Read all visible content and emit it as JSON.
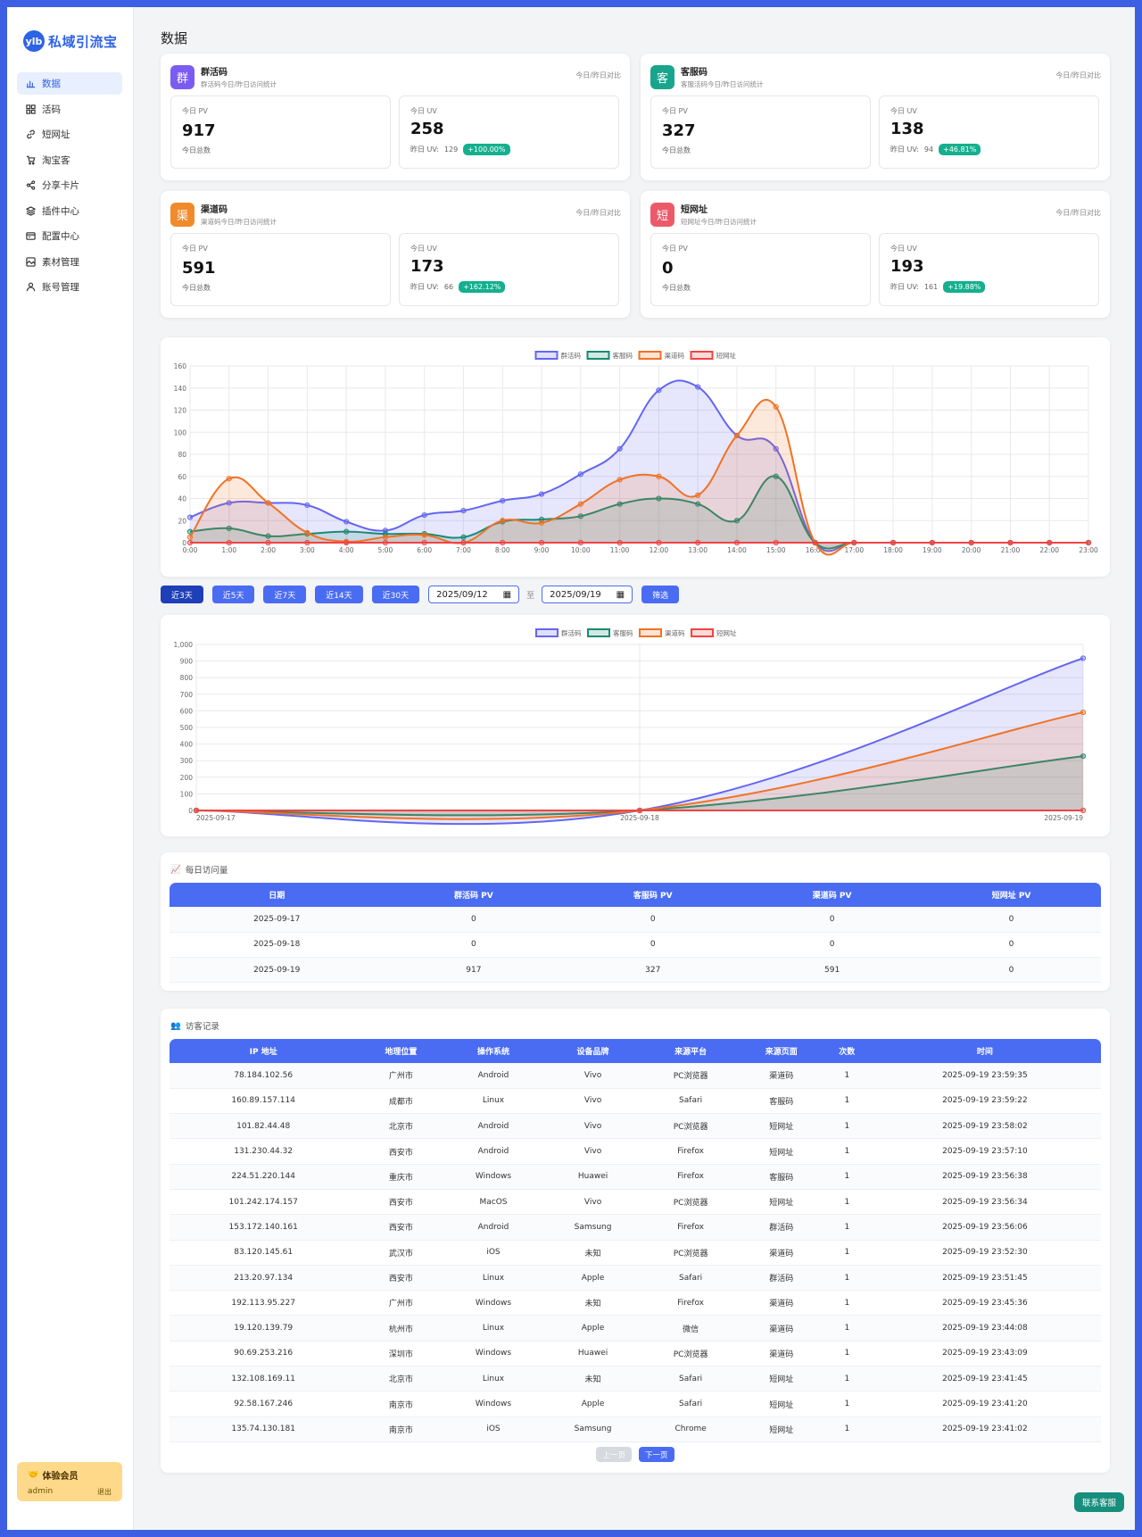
{
  "app": {
    "logo_badge": "ylb",
    "name": "私域引流宝"
  },
  "sidebar": {
    "items": [
      {
        "label": "数据",
        "icon": "chart-icon",
        "active": true
      },
      {
        "label": "活码",
        "icon": "grid-icon"
      },
      {
        "label": "短网址",
        "icon": "link-icon"
      },
      {
        "label": "淘宝客",
        "icon": "cart-icon"
      },
      {
        "label": "分享卡片",
        "icon": "share-icon"
      },
      {
        "label": "插件中心",
        "icon": "layers-icon"
      },
      {
        "label": "配置中心",
        "icon": "config-icon"
      },
      {
        "label": "素材管理",
        "icon": "image-icon"
      },
      {
        "label": "账号管理",
        "icon": "user-icon"
      }
    ],
    "member": {
      "title": "体验会员",
      "user": "admin",
      "logout": "退出"
    }
  },
  "page": {
    "title": "数据"
  },
  "cards": [
    {
      "icon_char": "群",
      "color": "#7b5cf0",
      "title": "群活码",
      "subtitle": "群活码今日/昨日访问统计",
      "compare": "今日/昨日对比",
      "pv_label": "今日 PV",
      "pv": "917",
      "pv_foot": "今日总数",
      "uv_label": "今日 UV",
      "uv": "258",
      "yuv_label": "昨日 UV:",
      "yuv": "129",
      "pct": "+100.00%"
    },
    {
      "icon_char": "客",
      "color": "#19a58b",
      "title": "客服码",
      "subtitle": "客服活码今日/昨日访问统计",
      "compare": "今日/昨日对比",
      "pv_label": "今日 PV",
      "pv": "327",
      "pv_foot": "今日总数",
      "uv_label": "今日 UV",
      "uv": "138",
      "yuv_label": "昨日 UV:",
      "yuv": "94",
      "pct": "+46.81%"
    },
    {
      "icon_char": "渠",
      "color": "#f08a2a",
      "title": "渠道码",
      "subtitle": "渠道码今日/昨日访问统计",
      "compare": "今日/昨日对比",
      "pv_label": "今日 PV",
      "pv": "591",
      "pv_foot": "今日总数",
      "uv_label": "今日 UV",
      "uv": "173",
      "yuv_label": "昨日 UV:",
      "yuv": "66",
      "pct": "+162.12%"
    },
    {
      "icon_char": "短",
      "color": "#ec5a6a",
      "title": "短网址",
      "subtitle": "短网址今日/昨日访问统计",
      "compare": "今日/昨日对比",
      "pv_label": "今日 PV",
      "pv": "0",
      "pv_foot": "今日总数",
      "uv_label": "今日 UV",
      "uv": "193",
      "yuv_label": "昨日 UV:",
      "yuv": "161",
      "pct": "+19.88%"
    }
  ],
  "filters": {
    "buttons": [
      {
        "label": "近3天",
        "active": true
      },
      {
        "label": "近5天"
      },
      {
        "label": "近7天"
      },
      {
        "label": "近14天"
      },
      {
        "label": "近30天"
      }
    ],
    "start_date": "2025/09/12",
    "to": "至",
    "end_date": "2025/09/19",
    "apply": "筛选"
  },
  "chart_data": [
    {
      "type": "line",
      "legend_position": "top",
      "x": [
        "0:00",
        "1:00",
        "2:00",
        "3:00",
        "4:00",
        "5:00",
        "6:00",
        "7:00",
        "8:00",
        "9:00",
        "10:00",
        "11:00",
        "12:00",
        "13:00",
        "14:00",
        "15:00",
        "16:00",
        "17:00",
        "18:00",
        "19:00",
        "20:00",
        "21:00",
        "22:00",
        "23:00"
      ],
      "ylim": [
        0,
        160
      ],
      "yticks": [
        0,
        20,
        40,
        60,
        80,
        100,
        120,
        140,
        160
      ],
      "grid": true,
      "series": [
        {
          "name": "群活码",
          "color": "#6366f1",
          "values": [
            23,
            36,
            36,
            34,
            19,
            11,
            25,
            29,
            38,
            44,
            62,
            85,
            138,
            141,
            97,
            85,
            0,
            0,
            0,
            0,
            0,
            0,
            0,
            0
          ]
        },
        {
          "name": "客服码",
          "color": "#1a8a73",
          "values": [
            10,
            13,
            6,
            8,
            10,
            8,
            8,
            5,
            19,
            21,
            24,
            35,
            40,
            35,
            20,
            60,
            0,
            0,
            0,
            0,
            0,
            0,
            0,
            0
          ]
        },
        {
          "name": "渠道码",
          "color": "#f07224",
          "values": [
            5,
            58,
            36,
            9,
            1,
            5,
            7,
            0,
            20,
            18,
            35,
            57,
            60,
            43,
            97,
            123,
            0,
            0,
            0,
            0,
            0,
            0,
            0,
            0
          ]
        },
        {
          "name": "短网址",
          "color": "#ef4444",
          "values": [
            0,
            0,
            0,
            0,
            0,
            0,
            0,
            0,
            0,
            0,
            0,
            0,
            0,
            0,
            0,
            0,
            0,
            0,
            0,
            0,
            0,
            0,
            0,
            0
          ]
        }
      ]
    },
    {
      "type": "line",
      "legend_position": "top",
      "x": [
        "2025-09-17",
        "2025-09-18",
        "2025-09-19"
      ],
      "ylim": [
        0,
        1000
      ],
      "yticks": [
        "0",
        "100",
        "200",
        "300",
        "400",
        "500",
        "600",
        "700",
        "800",
        "900",
        "1,000"
      ],
      "grid": true,
      "series": [
        {
          "name": "群活码",
          "color": "#6366f1",
          "values": [
            0,
            0,
            917
          ]
        },
        {
          "name": "客服码",
          "color": "#1a8a73",
          "values": [
            0,
            0,
            327
          ]
        },
        {
          "name": "渠道码",
          "color": "#f07224",
          "values": [
            0,
            0,
            591
          ]
        },
        {
          "name": "短网址",
          "color": "#ef4444",
          "values": [
            0,
            0,
            0
          ]
        }
      ]
    }
  ],
  "daily": {
    "title": "每日访问量",
    "headers": [
      "日期",
      "群活码 PV",
      "客服码 PV",
      "渠道码 PV",
      "短网址 PV"
    ],
    "rows": [
      [
        "2025-09-17",
        "0",
        "0",
        "0",
        "0"
      ],
      [
        "2025-09-18",
        "0",
        "0",
        "0",
        "0"
      ],
      [
        "2025-09-19",
        "917",
        "327",
        "591",
        "0"
      ]
    ]
  },
  "visitors": {
    "title": "访客记录",
    "headers": [
      "IP 地址",
      "地理位置",
      "操作系统",
      "设备品牌",
      "来源平台",
      "来源页面",
      "次数",
      "时间"
    ],
    "rows": [
      [
        "78.184.102.56",
        "广州市",
        "Android",
        "Vivo",
        "PC浏览器",
        "渠道码",
        "1",
        "2025-09-19 23:59:35"
      ],
      [
        "160.89.157.114",
        "成都市",
        "Linux",
        "Vivo",
        "Safari",
        "客服码",
        "1",
        "2025-09-19 23:59:22"
      ],
      [
        "101.82.44.48",
        "北京市",
        "Android",
        "Vivo",
        "PC浏览器",
        "短网址",
        "1",
        "2025-09-19 23:58:02"
      ],
      [
        "131.230.44.32",
        "西安市",
        "Android",
        "Vivo",
        "Firefox",
        "短网址",
        "1",
        "2025-09-19 23:57:10"
      ],
      [
        "224.51.220.144",
        "重庆市",
        "Windows",
        "Huawei",
        "Firefox",
        "客服码",
        "1",
        "2025-09-19 23:56:38"
      ],
      [
        "101.242.174.157",
        "西安市",
        "MacOS",
        "Vivo",
        "PC浏览器",
        "短网址",
        "1",
        "2025-09-19 23:56:34"
      ],
      [
        "153.172.140.161",
        "西安市",
        "Android",
        "Samsung",
        "Firefox",
        "群活码",
        "1",
        "2025-09-19 23:56:06"
      ],
      [
        "83.120.145.61",
        "武汉市",
        "iOS",
        "未知",
        "PC浏览器",
        "渠道码",
        "1",
        "2025-09-19 23:52:30"
      ],
      [
        "213.20.97.134",
        "西安市",
        "Linux",
        "Apple",
        "Safari",
        "群活码",
        "1",
        "2025-09-19 23:51:45"
      ],
      [
        "192.113.95.227",
        "广州市",
        "Windows",
        "未知",
        "Firefox",
        "渠道码",
        "1",
        "2025-09-19 23:45:36"
      ],
      [
        "19.120.139.79",
        "杭州市",
        "Linux",
        "Apple",
        "微信",
        "渠道码",
        "1",
        "2025-09-19 23:44:08"
      ],
      [
        "90.69.253.216",
        "深圳市",
        "Windows",
        "Huawei",
        "PC浏览器",
        "渠道码",
        "1",
        "2025-09-19 23:43:09"
      ],
      [
        "132.108.169.11",
        "北京市",
        "Linux",
        "未知",
        "Safari",
        "短网址",
        "1",
        "2025-09-19 23:41:45"
      ],
      [
        "92.58.167.246",
        "南京市",
        "Windows",
        "Apple",
        "Safari",
        "短网址",
        "1",
        "2025-09-19 23:41:20"
      ],
      [
        "135.74.130.181",
        "南京市",
        "iOS",
        "Samsung",
        "Chrome",
        "短网址",
        "1",
        "2025-09-19 23:41:02"
      ]
    ],
    "prev": "上一页",
    "next": "下一页"
  },
  "contact": "联系客服"
}
